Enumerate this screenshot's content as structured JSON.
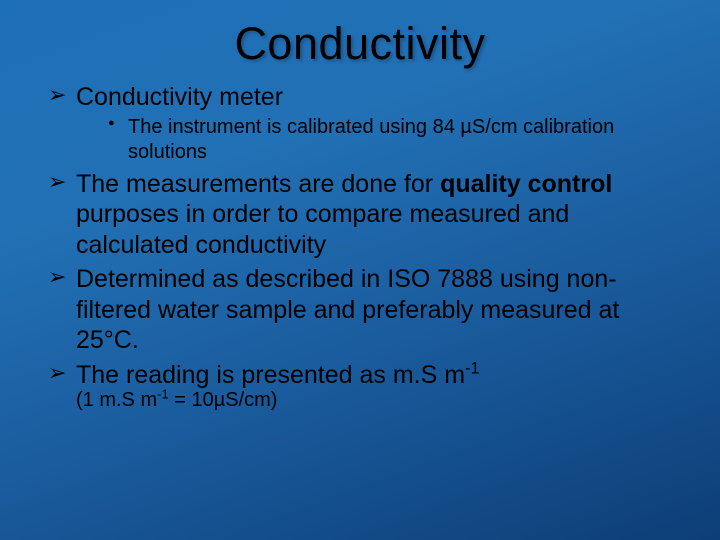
{
  "slide": {
    "background_gradient": [
      "#1d6fb8",
      "#2270b5",
      "#1a5c9e",
      "#0d3e77"
    ],
    "title": "Conductivity",
    "title_fontsize": 45,
    "text_color": "#000000",
    "bullets": {
      "item1": {
        "text": "Conductivity meter",
        "sub": {
          "a": "The instrument is calibrated using 84 µS/cm calibration solutions"
        }
      },
      "item2_pre": "The measurements are done for ",
      "item2_bold": "quality control",
      "item2_post": " purposes in order to compare measured and calculated conductivity",
      "item3": "Determined as described in ISO 7888 using non-filtered water sample and preferably measured at 25°C.",
      "item4_pre": "The reading is presented as m.S m",
      "item4_sup": "-1",
      "item4_note_pre": "(1 m.S m",
      "item4_note_sup": "-1",
      "item4_note_post": " = 10µS/cm)"
    },
    "body_fontsize_l1": 25,
    "body_fontsize_l2": 20
  }
}
